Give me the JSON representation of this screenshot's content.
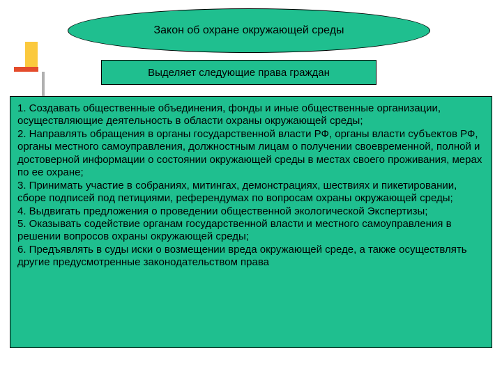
{
  "colors": {
    "ellipse_fill": "#1fbf8f",
    "subtitle_fill": "#1fbf8f",
    "bigbox_fill": "#1fbf8f",
    "text_color": "#000000",
    "deco_yellow": "#fbc93d",
    "deco_red": "#e44c2c",
    "deco_gray": "#b0b0b0"
  },
  "typography": {
    "title_fontsize": 16,
    "subtitle_fontsize": 15,
    "body_fontsize": 15,
    "line_height": 1.23,
    "font_family": "Arial, sans-serif"
  },
  "ellipse": {
    "text": "Закон об охране окружающей среды"
  },
  "subtitle": {
    "text": "Выделяет  следующие права граждан"
  },
  "list": {
    "items": [
      "1.    Создавать общественные объединения, фонды и иные общественные организации, осуществляющие деятельность в области охраны окружающей среды;",
      "2. Направлять обращения в органы государственной власти РФ, органы власти субъектов РФ, органы местного самоуправления, должностным лицам о получении своевременной, полной и достоверной информации о состоянии окружающей среды в местах своего проживания, мерах по ее охране;",
      "3. Принимать участие в собраниях, митингах, демонстрациях, шествиях и пикетировании, сборе подписей под петициями, референдумах по вопросам охраны окружающей среды;",
      "4. Выдвигать предложения о проведении общественной экологической Экспертизы;",
      "5. Оказывать содействие органам государственной власти и местного самоуправления в решении вопросов охраны окружающей среды;",
      "6. Предъявлять в суды иски о возмещении вреда окружающей  среде, а также осуществлять другие предусмотренные законодательством права"
    ]
  }
}
